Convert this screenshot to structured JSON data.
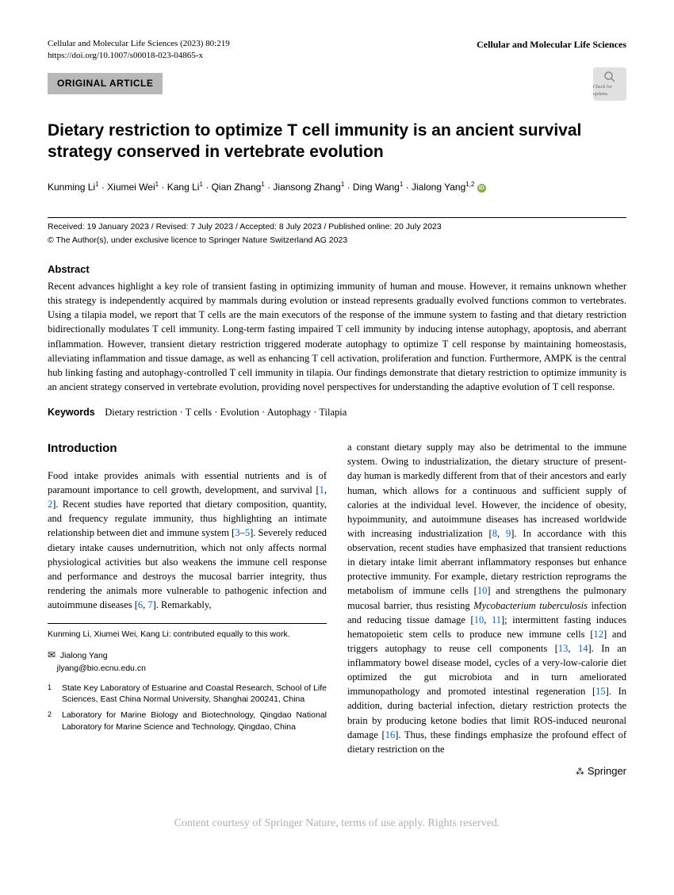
{
  "header": {
    "journal_ref": "Cellular and Molecular Life Sciences (2023) 80:219",
    "doi": "https://doi.org/10.1007/s00018-023-04865-x",
    "journal_name": "Cellular and Molecular Life Sciences"
  },
  "article_type": "ORIGINAL ARTICLE",
  "check_updates_label": "Check for updates",
  "title": "Dietary restriction to optimize T cell immunity is an ancient survival strategy conserved in vertebrate evolution",
  "authors_html": "Kunming Li<sup>1</sup> · Xiumei Wei<sup>1</sup> · Kang Li<sup>1</sup> · Qian Zhang<sup>1</sup> · Jiansong Zhang<sup>1</sup> · Ding Wang<sup>1</sup> · Jialong Yang<sup>1,2</sup>",
  "dates": "Received: 19 January 2023 / Revised: 7 July 2023 / Accepted: 8 July 2023 / Published online: 20 July 2023",
  "copyright": "© The Author(s), under exclusive licence to Springer Nature Switzerland AG 2023",
  "abstract_heading": "Abstract",
  "abstract_text": "Recent advances highlight a key role of transient fasting in optimizing immunity of human and mouse. However, it remains unknown whether this strategy is independently acquired by mammals during evolution or instead represents gradually evolved functions common to vertebrates. Using a tilapia model, we report that T cells are the main executors of the response of the immune system to fasting and that dietary restriction bidirectionally modulates T cell immunity. Long-term fasting impaired T cell immunity by inducing intense autophagy, apoptosis, and aberrant inflammation. However, transient dietary restriction triggered moderate autophagy to optimize T cell response by maintaining homeostasis, alleviating inflammation and tissue damage, as well as enhancing T cell activation, proliferation and function. Furthermore, AMPK is the central hub linking fasting and autophagy-controlled T cell immunity in tilapia. Our findings demonstrate that dietary restriction to optimize immunity is an ancient strategy conserved in vertebrate evolution, providing novel perspectives for understanding the adaptive evolution of T cell response.",
  "keywords_label": "Keywords",
  "keywords_text": "Dietary restriction · T cells · Evolution · Autophagy · Tilapia",
  "introduction_heading": "Introduction",
  "body": {
    "col1_p1_a": "Food intake provides animals with essential nutrients and is of paramount importance to cell growth, development, and survival [",
    "col1_c1": "1",
    "col1_sep1": ", ",
    "col1_c2": "2",
    "col1_p1_b": "]. Recent studies have reported that dietary composition, quantity, and frequency regulate immunity, thus highlighting an intimate relationship between diet and immune system [",
    "col1_c3": "3",
    "col1_dash": "–",
    "col1_c5": "5",
    "col1_p1_c": "]. Severely reduced dietary intake causes undernutrition, which not only affects normal physiological activities but also weakens the immune cell response and performance and destroys the mucosal barrier integrity, thus rendering the animals more vulnerable to pathogenic infection and autoimmune diseases [",
    "col1_c6": "6",
    "col1_sep2": ", ",
    "col1_c7": "7",
    "col1_p1_d": "]. Remarkably,",
    "col2_a": "a constant dietary supply may also be detrimental to the immune system. Owing to industrialization, the dietary structure of present-day human is markedly different from that of their ancestors and early human, which allows for a continuous and sufficient supply of calories at the individual level. However, the incidence of obesity, hypoimmunity, and autoimmune diseases has increased worldwide with increasing industrialization [",
    "col2_c8": "8",
    "col2_sep1": ", ",
    "col2_c9": "9",
    "col2_b": "]. In accordance with this observation, recent studies have emphasized that transient reductions in dietary intake limit aberrant inflammatory responses but enhance protective immunity. For example, dietary restriction reprograms the metabolism of immune cells [",
    "col2_c10": "10",
    "col2_c": "] and strengthens the pulmonary mucosal barrier, thus resisting ",
    "col2_italic": "Mycobacterium tuberculosis",
    "col2_d": " infection and reducing tissue damage [",
    "col2_c10b": "10",
    "col2_sep2": ", ",
    "col2_c11": "11",
    "col2_e": "]; intermittent fasting induces hematopoietic stem cells to produce new immune cells [",
    "col2_c12": "12",
    "col2_f": "] and triggers autophagy to reuse cell components [",
    "col2_c13": "13",
    "col2_sep3": ", ",
    "col2_c14": "14",
    "col2_g": "]. In an inflammatory bowel disease model, cycles of a very-low-calorie diet optimized the gut microbiota and in turn ameliorated immunopathology and promoted intestinal regeneration [",
    "col2_c15": "15",
    "col2_h": "]. In addition, during bacterial infection, dietary restriction protects the brain by producing ketone bodies that limit ROS-induced neuronal damage [",
    "col2_c16": "16",
    "col2_i": "]. Thus, these findings emphasize the profound effect of dietary restriction on the"
  },
  "footnotes": {
    "contrib": "Kunming Li, Xiumei Wei, Kang Li: contributed equally to this work.",
    "corr_name": "Jialong Yang",
    "corr_email": "jlyang@bio.ecnu.edu.cn",
    "affil1": "State Key Laboratory of Estuarine and Coastal Research, School of Life Sciences, East China Normal University, Shanghai 200241, China",
    "affil2": "Laboratory for Marine Biology and Biotechnology, Qingdao National Laboratory for Marine Science and Technology, Qingdao, China"
  },
  "publisher": "Springer",
  "watermark": "Content courtesy of Springer Nature, terms of use apply. Rights reserved."
}
